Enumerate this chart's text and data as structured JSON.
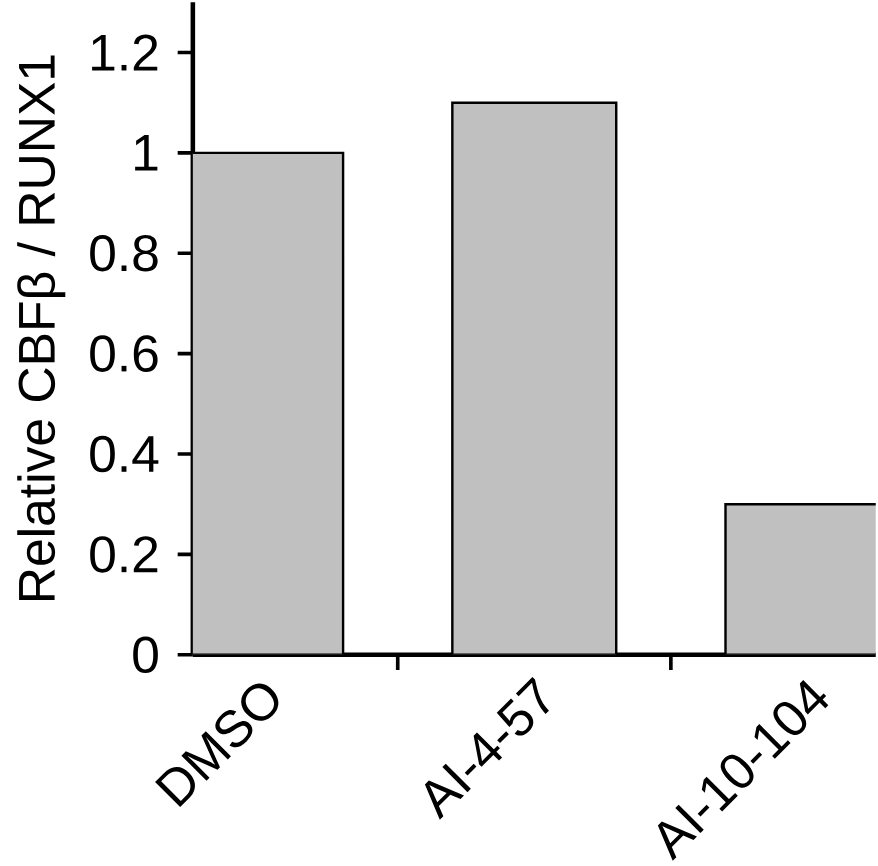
{
  "chart_data": {
    "type": "bar",
    "ylabel": "Relative CBFβ / RUNX1",
    "categories": [
      "DMSO",
      "AI-4-57",
      "AI-10-104"
    ],
    "values": [
      1.0,
      1.1,
      0.3
    ],
    "color": "#c0c0c0",
    "ylim": [
      0,
      1.3
    ],
    "yticks": [
      0,
      0.2,
      0.4,
      0.6,
      0.8,
      1,
      1.2
    ]
  }
}
